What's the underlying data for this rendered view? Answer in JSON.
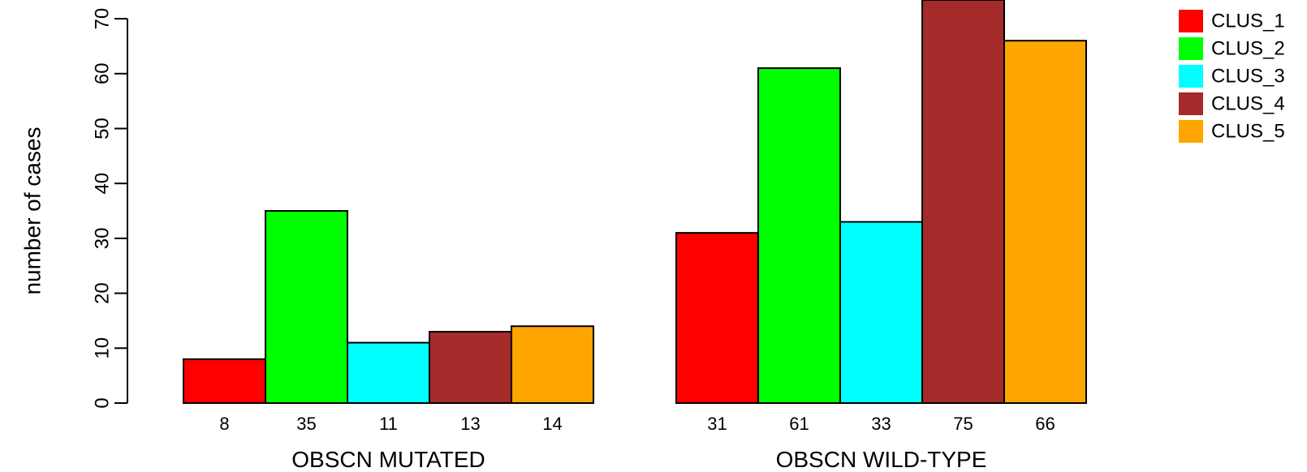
{
  "chart_data": {
    "type": "bar",
    "ylabel": "number of cases",
    "ylim": [
      0,
      70
    ],
    "yticks": [
      0,
      10,
      20,
      30,
      40,
      50,
      60,
      70
    ],
    "groups": [
      {
        "label": "OBSCN MUTATED",
        "values": [
          8,
          35,
          11,
          13,
          14
        ],
        "value_labels": [
          "8",
          "35",
          "11",
          "13",
          "14"
        ]
      },
      {
        "label": "OBSCN WILD-TYPE",
        "values": [
          31,
          61,
          33,
          75,
          66
        ],
        "value_labels": [
          "31",
          "61",
          "33",
          "75",
          "66"
        ]
      }
    ],
    "series": [
      {
        "name": "CLUS_1",
        "color": "#ff0000"
      },
      {
        "name": "CLUS_2",
        "color": "#00ff00"
      },
      {
        "name": "CLUS_3",
        "color": "#00ffff"
      },
      {
        "name": "CLUS_4",
        "color": "#a52a2a"
      },
      {
        "name": "CLUS_5",
        "color": "#ffa500"
      }
    ],
    "legend_position": "top-right",
    "grid": false
  }
}
